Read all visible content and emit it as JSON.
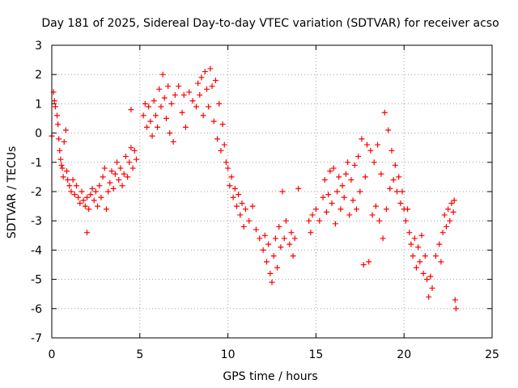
{
  "chart_data": {
    "type": "scatter",
    "title": "Day 181 of 2025, Sidereal Day-to-day VTEC variation (SDTVAR) for receiver acso",
    "xlabel": "GPS time / hours",
    "ylabel": "SDTVAR / TECUs",
    "xlim": [
      0,
      25
    ],
    "ylim": [
      -7,
      3
    ],
    "x_ticks": [
      "0",
      "5",
      "10",
      "15",
      "20",
      "25"
    ],
    "y_ticks": [
      "-7",
      "-6",
      "-5",
      "-4",
      "-3",
      "-2",
      "-1",
      "0",
      "1",
      "2",
      "3"
    ],
    "grid": true,
    "marker": "+",
    "series_color": "#ff0000",
    "series": [
      {
        "name": "SDTVAR",
        "points": [
          [
            0.0,
            -0.1
          ],
          [
            0.1,
            1.4
          ],
          [
            0.15,
            1.1
          ],
          [
            0.2,
            0.9
          ],
          [
            0.3,
            0.6
          ],
          [
            0.35,
            0.3
          ],
          [
            0.4,
            -0.2
          ],
          [
            0.45,
            -0.6
          ],
          [
            0.5,
            -0.9
          ],
          [
            0.55,
            -1.1
          ],
          [
            0.6,
            -1.2
          ],
          [
            0.65,
            -1.5
          ],
          [
            0.7,
            -0.3
          ],
          [
            0.8,
            0.1
          ],
          [
            0.85,
            -1.3
          ],
          [
            0.9,
            -1.6
          ],
          [
            1.0,
            -1.8
          ],
          [
            1.1,
            -2.0
          ],
          [
            1.2,
            -1.6
          ],
          [
            1.3,
            -2.1
          ],
          [
            1.4,
            -1.8
          ],
          [
            1.5,
            -2.2
          ],
          [
            1.6,
            -2.4
          ],
          [
            1.7,
            -2.0
          ],
          [
            1.8,
            -2.3
          ],
          [
            1.9,
            -2.5
          ],
          [
            2.0,
            -2.2
          ],
          [
            2.0,
            -3.4
          ],
          [
            2.1,
            -2.6
          ],
          [
            2.2,
            -2.1
          ],
          [
            2.3,
            -1.9
          ],
          [
            2.4,
            -2.3
          ],
          [
            2.5,
            -2.0
          ],
          [
            2.6,
            -2.5
          ],
          [
            2.7,
            -1.8
          ],
          [
            2.8,
            -2.2
          ],
          [
            2.9,
            -1.5
          ],
          [
            3.0,
            -1.2
          ],
          [
            3.1,
            -2.6
          ],
          [
            3.2,
            -2.0
          ],
          [
            3.3,
            -1.7
          ],
          [
            3.4,
            -1.3
          ],
          [
            3.5,
            -1.9
          ],
          [
            3.6,
            -1.4
          ],
          [
            3.7,
            -1.0
          ],
          [
            3.8,
            -1.6
          ],
          [
            3.9,
            -1.2
          ],
          [
            4.0,
            -1.8
          ],
          [
            4.1,
            -1.4
          ],
          [
            4.2,
            -0.8
          ],
          [
            4.3,
            -1.5
          ],
          [
            4.4,
            -1.0
          ],
          [
            4.5,
            -0.5
          ],
          [
            4.6,
            -1.2
          ],
          [
            4.7,
            -0.6
          ],
          [
            4.8,
            -0.9
          ],
          [
            4.5,
            0.8
          ],
          [
            5.2,
            0.6
          ],
          [
            5.3,
            1.0
          ],
          [
            5.4,
            0.2
          ],
          [
            5.5,
            0.9
          ],
          [
            5.6,
            0.4
          ],
          [
            5.7,
            -0.1
          ],
          [
            5.8,
            1.1
          ],
          [
            5.9,
            0.6
          ],
          [
            6.0,
            0.2
          ],
          [
            6.1,
            1.5
          ],
          [
            6.2,
            0.9
          ],
          [
            6.3,
            2.0
          ],
          [
            6.4,
            1.2
          ],
          [
            6.5,
            0.5
          ],
          [
            6.6,
            1.6
          ],
          [
            6.7,
            0.0
          ],
          [
            6.8,
            1.0
          ],
          [
            6.9,
            -0.3
          ],
          [
            7.0,
            1.3
          ],
          [
            7.2,
            1.6
          ],
          [
            7.4,
            0.7
          ],
          [
            7.5,
            1.3
          ],
          [
            7.6,
            0.2
          ],
          [
            7.8,
            1.4
          ],
          [
            8.0,
            1.1
          ],
          [
            8.2,
            0.9
          ],
          [
            8.3,
            1.7
          ],
          [
            8.4,
            1.3
          ],
          [
            8.5,
            1.9
          ],
          [
            8.6,
            0.6
          ],
          [
            8.7,
            2.1
          ],
          [
            8.8,
            1.5
          ],
          [
            8.9,
            0.9
          ],
          [
            9.0,
            2.2
          ],
          [
            9.1,
            1.6
          ],
          [
            9.2,
            0.4
          ],
          [
            9.3,
            1.8
          ],
          [
            9.4,
            -0.2
          ],
          [
            9.5,
            1.0
          ],
          [
            9.6,
            -0.6
          ],
          [
            9.7,
            0.3
          ],
          [
            9.8,
            -0.4
          ],
          [
            9.9,
            -1.0
          ],
          [
            10.0,
            -1.2
          ],
          [
            10.1,
            -1.8
          ],
          [
            10.2,
            -1.5
          ],
          [
            10.3,
            -2.2
          ],
          [
            10.4,
            -1.9
          ],
          [
            10.5,
            -2.5
          ],
          [
            10.6,
            -2.1
          ],
          [
            10.7,
            -2.8
          ],
          [
            10.8,
            -2.4
          ],
          [
            10.9,
            -3.2
          ],
          [
            11.0,
            -2.6
          ],
          [
            11.2,
            -3.0
          ],
          [
            11.4,
            -2.5
          ],
          [
            11.6,
            -3.3
          ],
          [
            11.8,
            -3.6
          ],
          [
            12.0,
            -4.0
          ],
          [
            12.1,
            -3.5
          ],
          [
            12.2,
            -4.4
          ],
          [
            12.3,
            -3.8
          ],
          [
            12.4,
            -4.8
          ],
          [
            12.5,
            -5.1
          ],
          [
            12.6,
            -4.2
          ],
          [
            12.7,
            -3.6
          ],
          [
            12.8,
            -4.6
          ],
          [
            12.9,
            -3.2
          ],
          [
            13.0,
            -3.9
          ],
          [
            13.1,
            -2.0
          ],
          [
            13.2,
            -3.6
          ],
          [
            13.3,
            -3.0
          ],
          [
            13.5,
            -3.8
          ],
          [
            13.6,
            -3.4
          ],
          [
            13.7,
            -4.2
          ],
          [
            13.8,
            -3.6
          ],
          [
            14.0,
            -1.9
          ],
          [
            14.6,
            -3.0
          ],
          [
            14.7,
            -3.4
          ],
          [
            14.8,
            -2.8
          ],
          [
            15.0,
            -2.6
          ],
          [
            15.2,
            -3.0
          ],
          [
            15.4,
            -2.2
          ],
          [
            15.5,
            -1.6
          ],
          [
            15.6,
            -2.7
          ],
          [
            15.7,
            -2.1
          ],
          [
            15.8,
            -1.3
          ],
          [
            15.9,
            -2.4
          ],
          [
            16.0,
            -1.2
          ],
          [
            16.1,
            -3.1
          ],
          [
            16.2,
            -2.0
          ],
          [
            16.3,
            -1.5
          ],
          [
            16.4,
            -2.6
          ],
          [
            16.5,
            -1.8
          ],
          [
            16.6,
            -2.2
          ],
          [
            16.7,
            -1.4
          ],
          [
            16.8,
            -1.0
          ],
          [
            16.9,
            -2.8
          ],
          [
            17.0,
            -1.6
          ],
          [
            17.1,
            -2.3
          ],
          [
            17.2,
            -1.1
          ],
          [
            17.3,
            -2.6
          ],
          [
            17.4,
            -0.8
          ],
          [
            17.5,
            -2.0
          ],
          [
            17.6,
            -0.2
          ],
          [
            17.7,
            -4.5
          ],
          [
            17.8,
            -1.5
          ],
          [
            17.9,
            -0.4
          ],
          [
            18.0,
            -4.4
          ],
          [
            18.1,
            -0.6
          ],
          [
            18.2,
            -2.8
          ],
          [
            18.3,
            -1.0
          ],
          [
            18.4,
            -2.5
          ],
          [
            18.5,
            -0.4
          ],
          [
            18.6,
            -3.0
          ],
          [
            18.7,
            -1.4
          ],
          [
            18.8,
            -3.6
          ],
          [
            18.9,
            0.7
          ],
          [
            19.0,
            -2.6
          ],
          [
            19.1,
            0.1
          ],
          [
            19.2,
            -1.9
          ],
          [
            19.3,
            -0.6
          ],
          [
            19.4,
            -1.6
          ],
          [
            19.5,
            -1.1
          ],
          [
            19.6,
            -2.0
          ],
          [
            19.7,
            -1.5
          ],
          [
            19.8,
            -2.4
          ],
          [
            19.9,
            -2.0
          ],
          [
            20.0,
            -2.6
          ],
          [
            20.1,
            -3.0
          ],
          [
            20.2,
            -2.6
          ],
          [
            20.3,
            -3.4
          ],
          [
            20.4,
            -3.8
          ],
          [
            20.5,
            -4.2
          ],
          [
            20.6,
            -3.6
          ],
          [
            20.7,
            -4.6
          ],
          [
            20.8,
            -3.9
          ],
          [
            20.9,
            -4.4
          ],
          [
            21.0,
            -3.5
          ],
          [
            21.1,
            -4.8
          ],
          [
            21.2,
            -4.2
          ],
          [
            21.3,
            -5.0
          ],
          [
            21.4,
            -5.6
          ],
          [
            21.5,
            -4.9
          ],
          [
            21.6,
            -5.3
          ],
          [
            21.8,
            -4.2
          ],
          [
            22.0,
            -3.8
          ],
          [
            22.1,
            -4.4
          ],
          [
            22.2,
            -3.4
          ],
          [
            22.3,
            -2.8
          ],
          [
            22.4,
            -3.2
          ],
          [
            22.5,
            -2.6
          ],
          [
            22.6,
            -3.0
          ],
          [
            22.7,
            -2.4
          ],
          [
            22.8,
            -2.7
          ],
          [
            22.85,
            -2.3
          ],
          [
            22.9,
            -5.7
          ],
          [
            22.95,
            -6.0
          ]
        ]
      }
    ]
  }
}
